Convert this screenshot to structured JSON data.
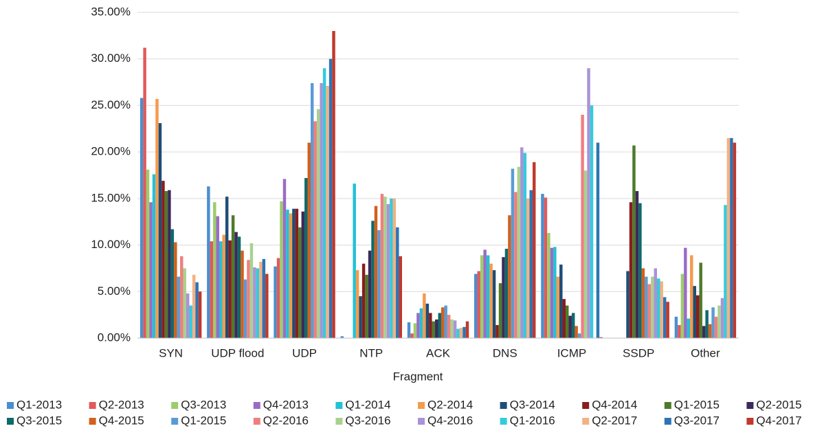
{
  "chart_data": {
    "type": "bar",
    "x_label": "Fragment",
    "categories": [
      "SYN",
      "UDP flood",
      "UDP",
      "NTP",
      "ACK",
      "DNS",
      "ICMP",
      "SSDP",
      "Other"
    ],
    "ylim": [
      0,
      35
    ],
    "yticks": [
      {
        "value": 0,
        "label": "0.00%"
      },
      {
        "value": 5,
        "label": "5.00%"
      },
      {
        "value": 10,
        "label": "10.00%"
      },
      {
        "value": 15,
        "label": "15.00%"
      },
      {
        "value": 20,
        "label": "20.00%"
      },
      {
        "value": 25,
        "label": "25.00%"
      },
      {
        "value": 30,
        "label": "30.00%"
      },
      {
        "value": 35,
        "label": "35.00%"
      }
    ],
    "grid": true,
    "legend": "bottom",
    "series": [
      {
        "name": "Q1-2013",
        "color": "#4a8fcf",
        "values": [
          25.8,
          16.3,
          7.7,
          0.2,
          1.7,
          6.9,
          15.5,
          0,
          2.3
        ]
      },
      {
        "name": "Q2-2013",
        "color": "#e2595a",
        "values": [
          31.2,
          10.4,
          8.6,
          0,
          0.5,
          7.2,
          15.1,
          0,
          1.4
        ]
      },
      {
        "name": "Q3-2013",
        "color": "#9dcc6b",
        "values": [
          18.1,
          14.6,
          14.7,
          0,
          1.6,
          8.9,
          11.3,
          0,
          6.9
        ]
      },
      {
        "name": "Q4-2013",
        "color": "#9a6cc6",
        "values": [
          14.6,
          13.1,
          17.1,
          0,
          2.7,
          9.5,
          9.7,
          0,
          9.7
        ]
      },
      {
        "name": "Q1-2014",
        "color": "#22c1d6",
        "values": [
          17.6,
          10.4,
          13.8,
          16.6,
          3.2,
          8.9,
          9.8,
          0,
          2.1
        ]
      },
      {
        "name": "Q2-2014",
        "color": "#f59b4c",
        "values": [
          25.7,
          11.1,
          13.4,
          7.3,
          4.8,
          8.0,
          6.6,
          0,
          8.9
        ]
      },
      {
        "name": "Q3-2014",
        "color": "#1d4e78",
        "values": [
          23.1,
          15.2,
          13.9,
          4.5,
          3.7,
          7.3,
          7.9,
          7.2,
          5.6
        ]
      },
      {
        "name": "Q4-2014",
        "color": "#8a1d1d",
        "values": [
          16.9,
          10.5,
          13.9,
          8.0,
          2.7,
          1.4,
          4.2,
          14.6,
          4.6
        ]
      },
      {
        "name": "Q1-2015",
        "color": "#4e7a2a",
        "values": [
          15.8,
          13.2,
          11.9,
          6.8,
          1.8,
          5.9,
          3.5,
          20.7,
          8.1
        ]
      },
      {
        "name": "Q2-2015",
        "color": "#3d2a5a",
        "values": [
          15.9,
          11.4,
          13.6,
          9.4,
          2.0,
          8.7,
          2.4,
          15.8,
          1.3
        ]
      },
      {
        "name": "Q3-2015",
        "color": "#0e6a6b",
        "values": [
          11.7,
          10.9,
          17.2,
          12.6,
          2.7,
          9.6,
          2.7,
          14.5,
          3.0
        ]
      },
      {
        "name": "Q4-2015",
        "color": "#d3601c",
        "values": [
          10.3,
          9.4,
          21.0,
          14.2,
          3.3,
          13.2,
          1.3,
          7.5,
          1.5
        ]
      },
      {
        "name": "Q1-2015",
        "color": "#5b9bd5",
        "values": [
          6.6,
          6.3,
          27.4,
          11.6,
          3.5,
          18.2,
          0.5,
          6.6,
          3.3
        ]
      },
      {
        "name": "Q2-2016",
        "color": "#ef7f7f",
        "values": [
          8.8,
          8.4,
          23.3,
          15.5,
          2.5,
          15.7,
          24.0,
          5.8,
          2.3
        ]
      },
      {
        "name": "Q3-2016",
        "color": "#a9d18e",
        "values": [
          7.5,
          10.2,
          24.6,
          15.2,
          2.0,
          18.4,
          18.0,
          6.6,
          3.5
        ]
      },
      {
        "name": "Q4-2016",
        "color": "#a993d6",
        "values": [
          4.8,
          7.6,
          27.4,
          14.4,
          1.9,
          20.5,
          29.0,
          7.5,
          4.3
        ]
      },
      {
        "name": "Q1-2016",
        "color": "#33cbdc",
        "values": [
          3.5,
          7.5,
          29.0,
          15.0,
          1.0,
          19.9,
          25.0,
          6.4,
          14.3
        ]
      },
      {
        "name": "Q2-2017",
        "color": "#f4b183",
        "values": [
          6.8,
          8.2,
          27.1,
          15.0,
          1.1,
          15.0,
          0,
          6.1,
          21.5
        ]
      },
      {
        "name": "Q3-2017",
        "color": "#2e74b5",
        "values": [
          6.0,
          8.5,
          30.0,
          11.9,
          1.2,
          15.9,
          21.0,
          4.4,
          21.5
        ]
      },
      {
        "name": "Q4-2017",
        "color": "#c0392b",
        "values": [
          5.0,
          6.9,
          33.0,
          8.8,
          1.8,
          18.9,
          0.1,
          3.9,
          21.0
        ]
      }
    ]
  }
}
